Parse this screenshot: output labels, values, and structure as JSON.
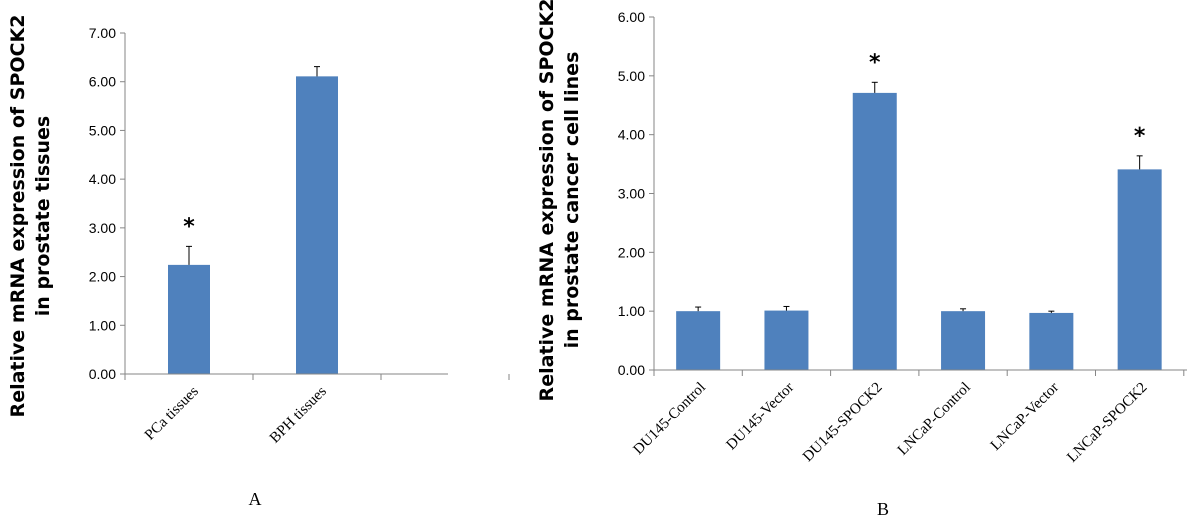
{
  "chart_data": [
    {
      "type": "bar",
      "panel_label": "A",
      "ylabel_line1": "Relative mRNA expression of SPOCK2",
      "ylabel_line2": "in prostate tissues",
      "categories": [
        "PCa tissues",
        "BPH tissues"
      ],
      "values": [
        2.24,
        6.11
      ],
      "errors": [
        0.38,
        0.2
      ],
      "significance": [
        "*",
        ""
      ],
      "ylim": [
        0,
        7
      ],
      "yticks": [
        "0.00",
        "1.00",
        "2.00",
        "3.00",
        "4.00",
        "5.00",
        "6.00",
        "7.00"
      ],
      "bar_color": "#4f81bd",
      "grid": false,
      "legend": "none"
    },
    {
      "type": "bar",
      "panel_label": "B",
      "ylabel_line1": "Relative mRNA expression of SPOCK2",
      "ylabel_line2": "in prostate cancer cell lines",
      "categories": [
        "DU145-Control",
        "DU145-Vector",
        "DU145-SPOCK2",
        "LNCaP-Control",
        "LNCaP-Vector",
        "LNCaP-SPOCK2"
      ],
      "values": [
        1.0,
        1.01,
        4.71,
        1.0,
        0.97,
        3.41
      ],
      "errors": [
        0.07,
        0.07,
        0.18,
        0.04,
        0.03,
        0.23
      ],
      "significance": [
        "",
        "",
        "*",
        "",
        "",
        "*"
      ],
      "ylim": [
        0,
        6
      ],
      "yticks": [
        "0.00",
        "1.00",
        "2.00",
        "3.00",
        "4.00",
        "5.00",
        "6.00"
      ],
      "bar_color": "#4f81bd",
      "grid": false,
      "legend": "none"
    }
  ]
}
